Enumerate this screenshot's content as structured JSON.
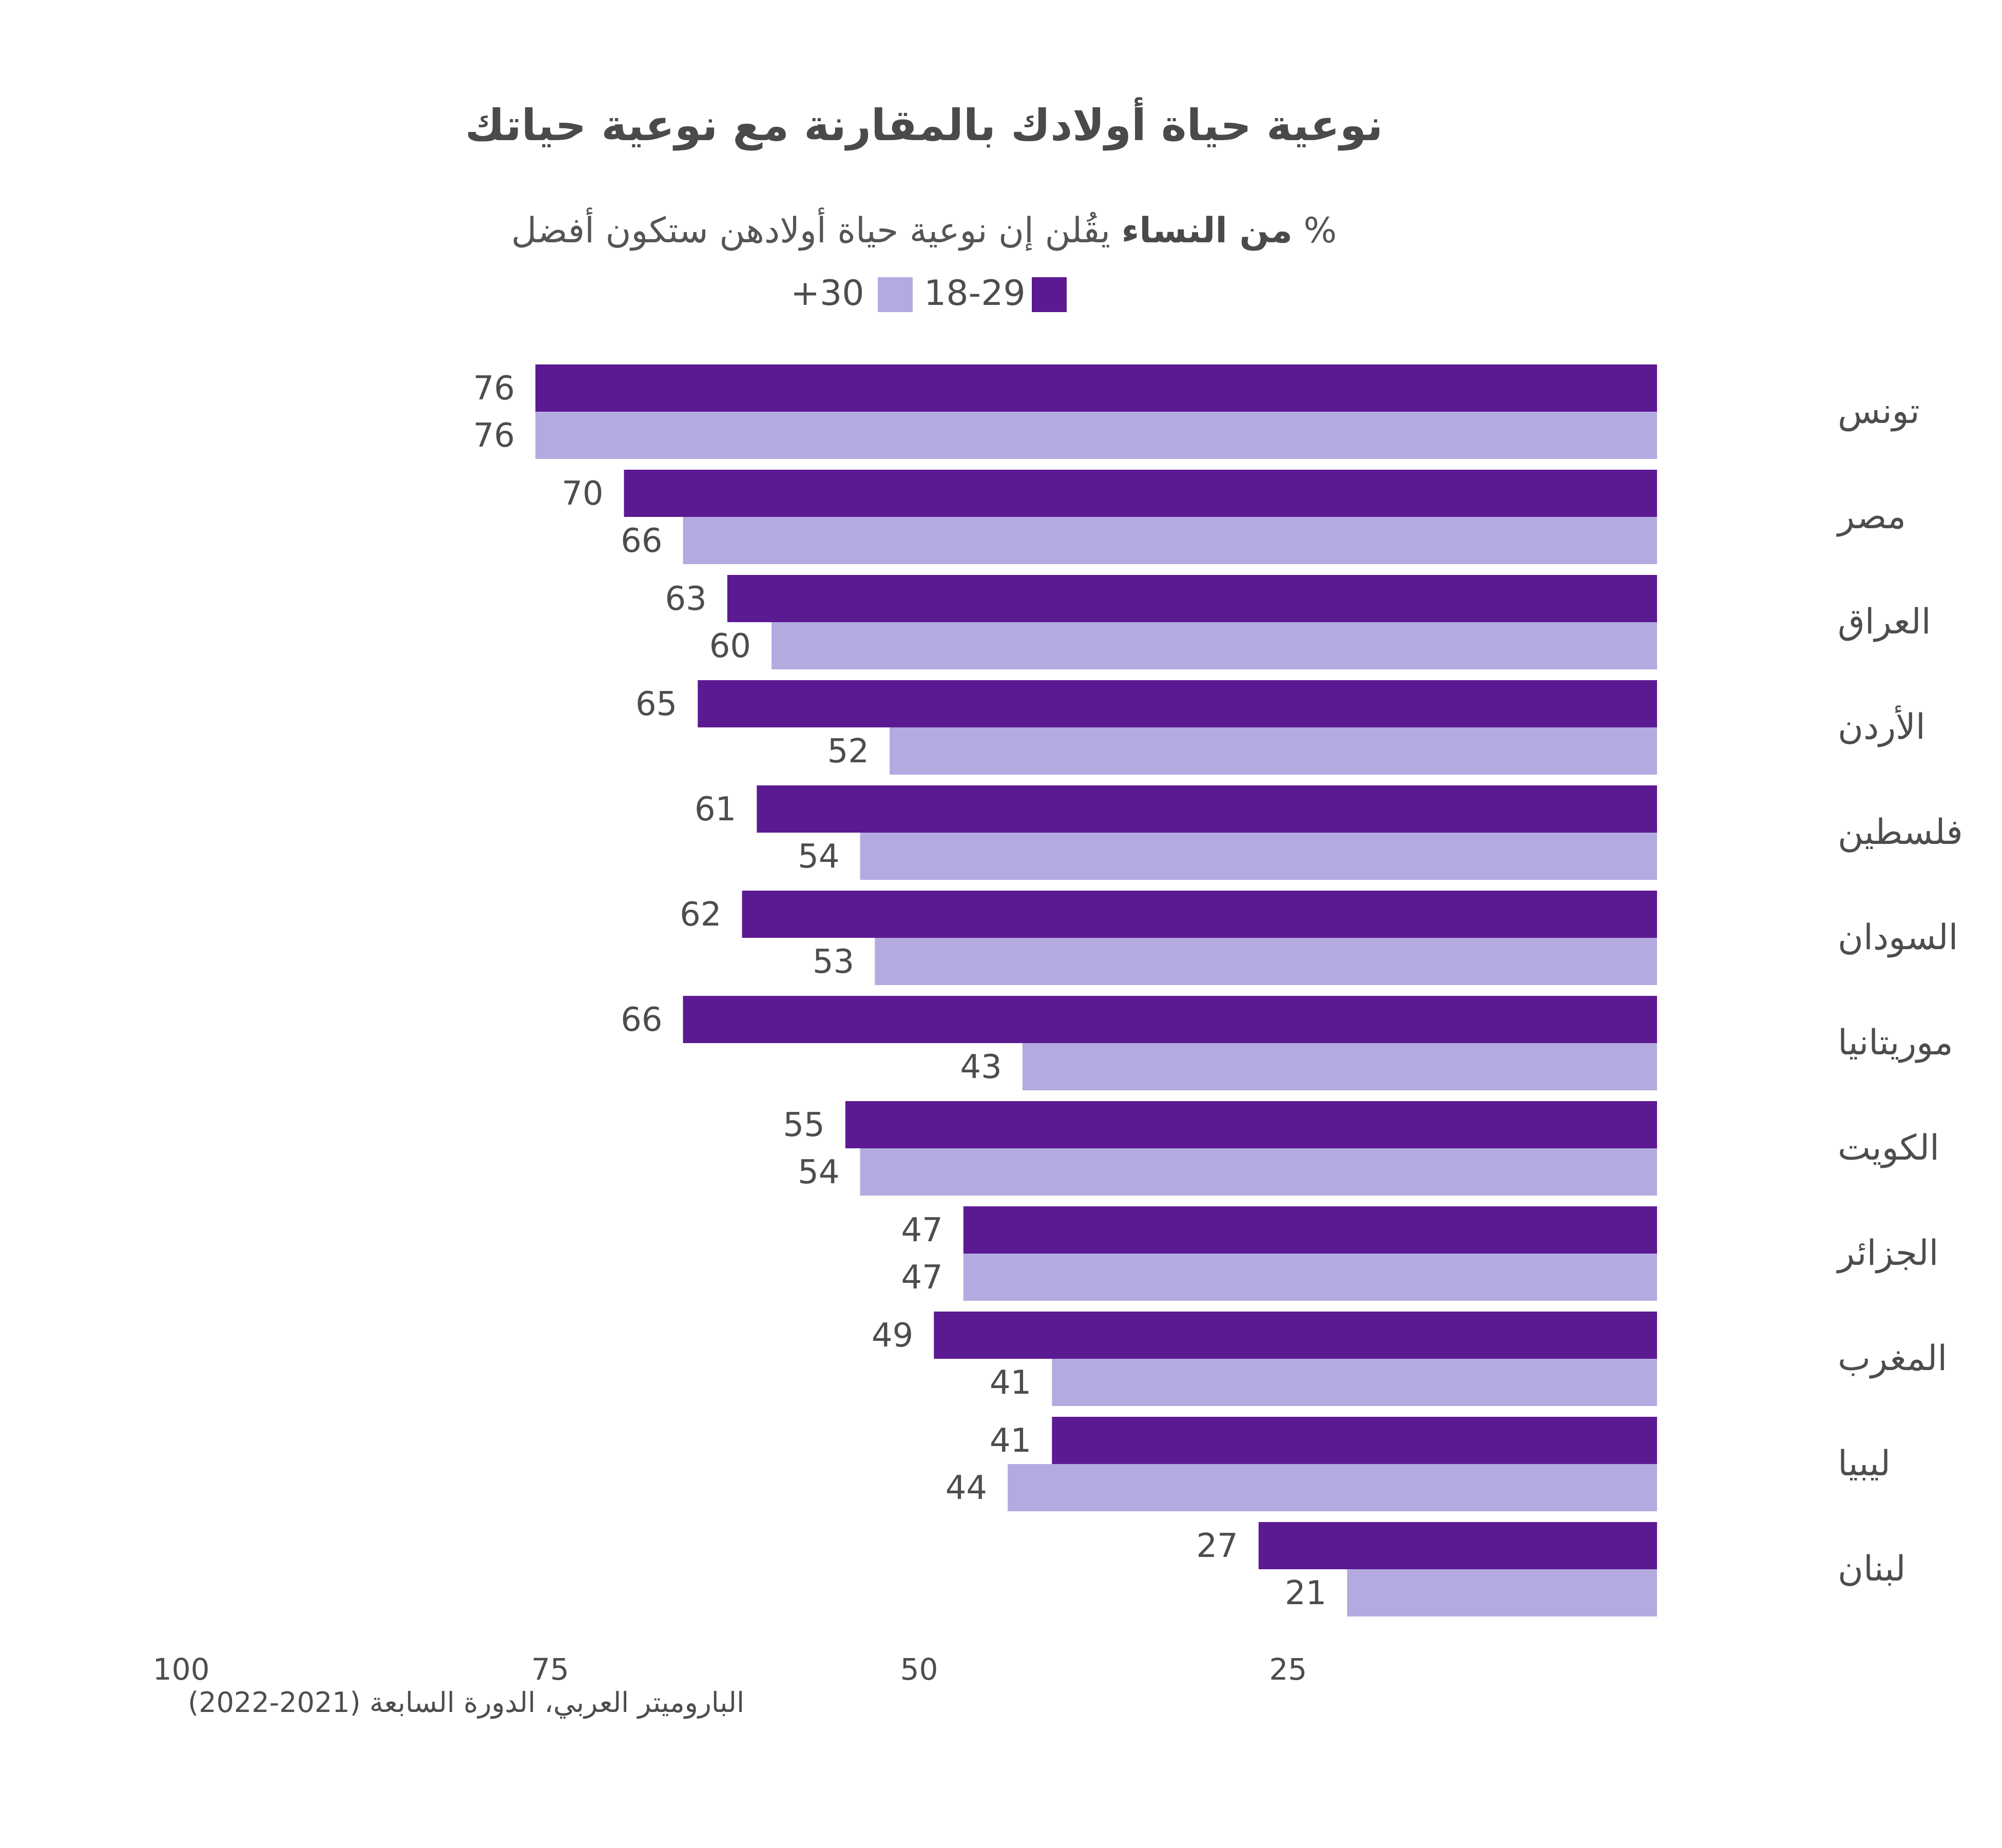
{
  "chart_data": {
    "type": "bar",
    "orientation": "horizontal",
    "title": "نوعية حياة أولادك بالمقارنة مع نوعية حياتك",
    "subtitle_bold": "من النساء",
    "subtitle_rest": "يقُلن إن نوعية حياة أولادهن ستكون أفضل",
    "subtitle_unit": "%",
    "categories": [
      "تونس",
      "مصر",
      "العراق",
      "الأردن",
      "فلسطين",
      "السودان",
      "موريتانيا",
      "الكويت",
      "الجزائر",
      "المغرب",
      "ليبيا",
      "لبنان"
    ],
    "series": [
      {
        "name": "18-29",
        "color": "#5c1a92",
        "values": [
          76,
          70,
          63,
          65,
          61,
          62,
          66,
          55,
          47,
          49,
          41,
          27
        ]
      },
      {
        "name": "+30",
        "color": "#b3abe0",
        "values": [
          76,
          66,
          60,
          52,
          54,
          53,
          43,
          54,
          47,
          41,
          44,
          21
        ]
      }
    ],
    "xlim": [
      0,
      100
    ],
    "xticks": [
      "100",
      "75",
      "50",
      "25"
    ],
    "x_reversed": true,
    "grid": false,
    "legend_position": "top-center",
    "source": "الباروميتر العربي، الدورة السابعة (2021-2022)"
  }
}
